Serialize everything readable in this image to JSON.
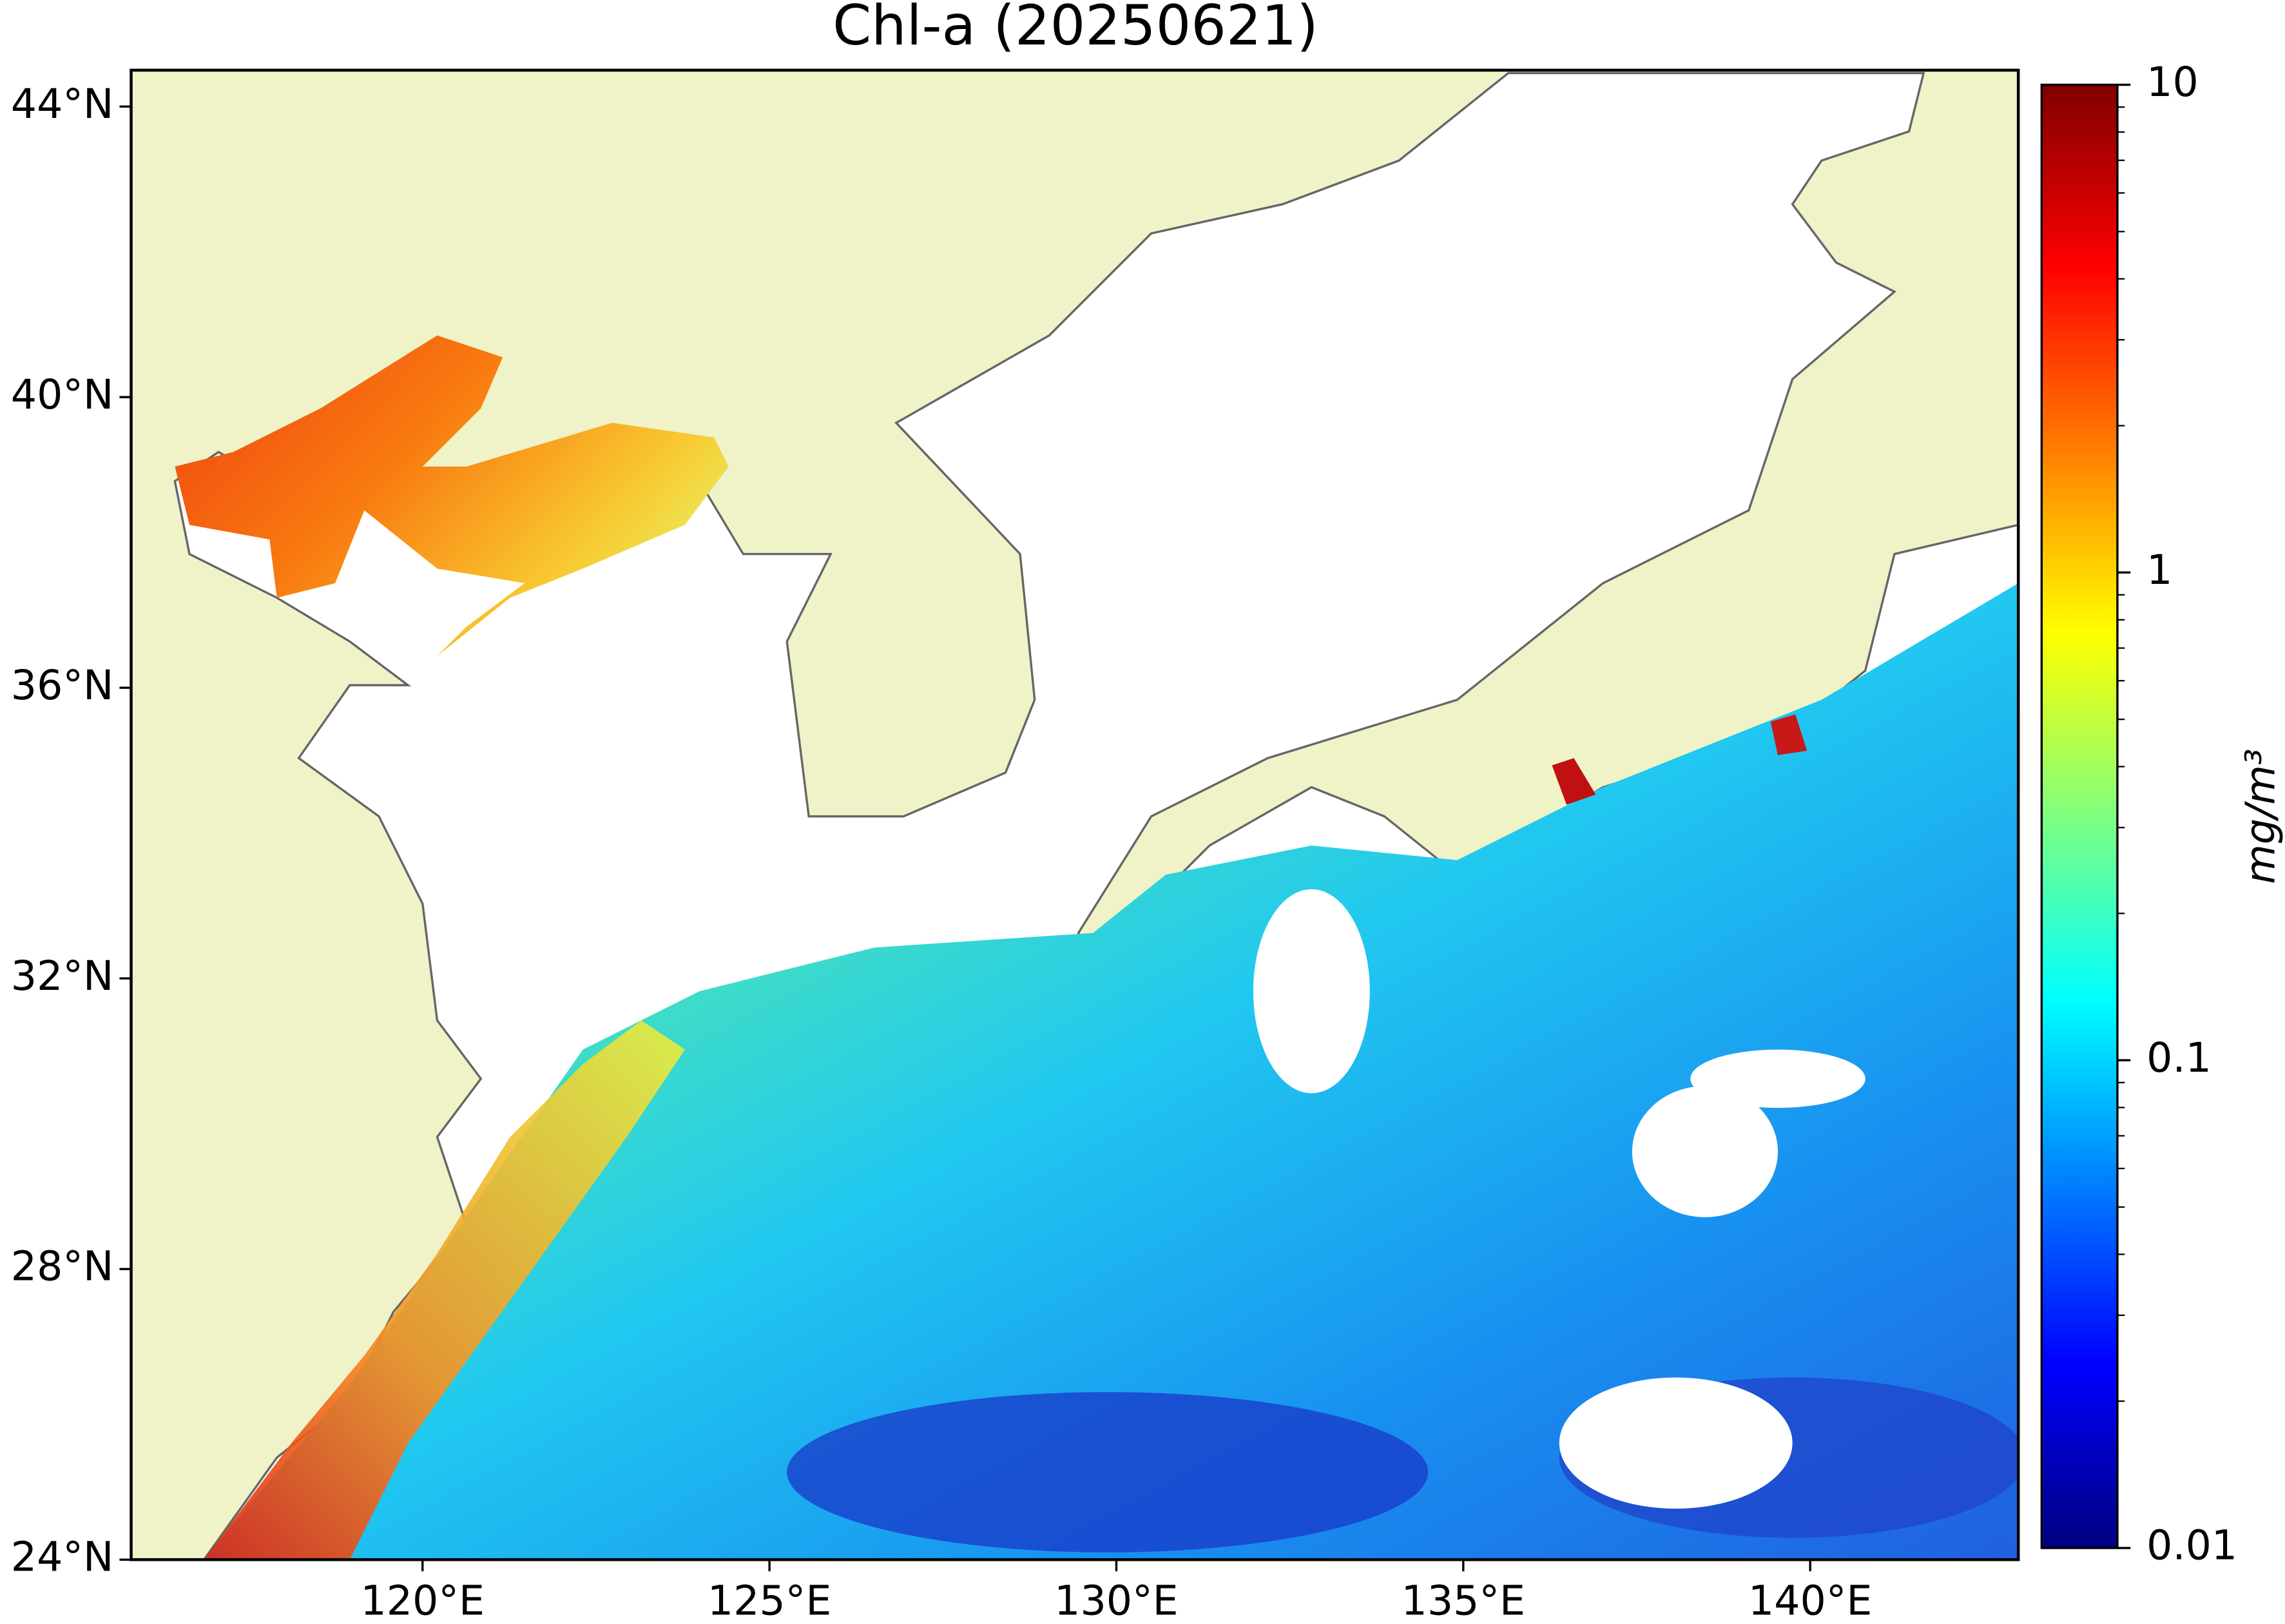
{
  "title": "Chl-a (20250621)",
  "map": {
    "xlim": [
      115.8,
      143.0
    ],
    "ylim": [
      24,
      44.5
    ],
    "xticks": [
      {
        "value": 120,
        "label": "120°E"
      },
      {
        "value": 125,
        "label": "125°E"
      },
      {
        "value": 130,
        "label": "130°E"
      },
      {
        "value": 135,
        "label": "135°E"
      },
      {
        "value": 140,
        "label": "140°E"
      }
    ],
    "yticks": [
      {
        "value": 24,
        "label": "24°N"
      },
      {
        "value": 28,
        "label": "28°N"
      },
      {
        "value": 32,
        "label": "32°N"
      },
      {
        "value": 36,
        "label": "36°N"
      },
      {
        "value": 40,
        "label": "40°N"
      },
      {
        "value": 44,
        "label": "44°N"
      }
    ]
  },
  "colorbar": {
    "label": "mg/m³",
    "scale": "log",
    "colormap": "jet",
    "lim": [
      0.01,
      10
    ],
    "ticks": [
      0.01,
      0.1,
      1,
      10
    ]
  }
}
